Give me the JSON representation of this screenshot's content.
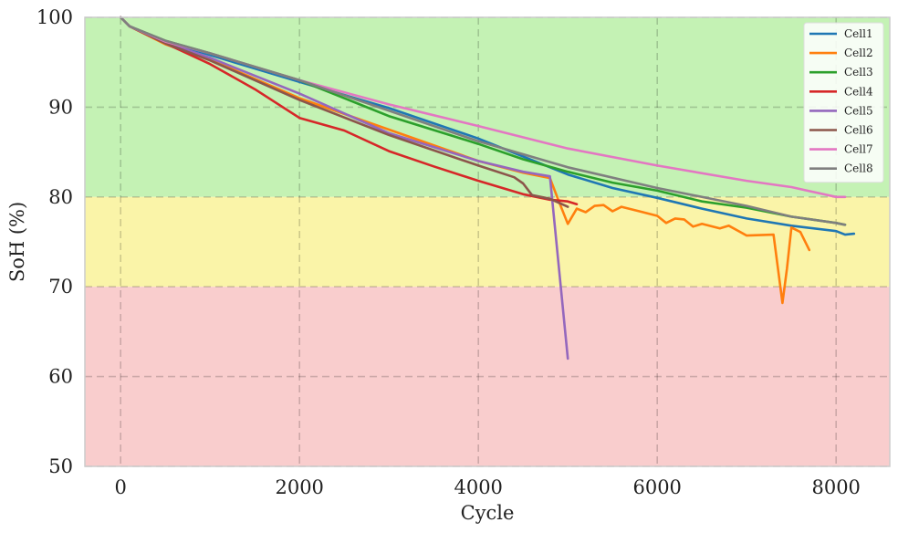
{
  "chart_data": {
    "type": "line",
    "title": "",
    "xlabel": "Cycle",
    "ylabel": "SoH (%)",
    "xlim": [
      -400,
      8600
    ],
    "ylim": [
      50,
      100
    ],
    "xticks": [
      0,
      2000,
      4000,
      6000,
      8000
    ],
    "yticks": [
      50,
      60,
      70,
      80,
      90,
      100
    ],
    "grid": true,
    "legend_position": "top-right",
    "bands": [
      {
        "from": 80,
        "to": 100,
        "color": "#c4f2b4"
      },
      {
        "from": 70,
        "to": 80,
        "color": "#faf4a8"
      },
      {
        "from": 50,
        "to": 70,
        "color": "#f9cdcd"
      }
    ],
    "series": [
      {
        "name": "Cell1",
        "color": "#1f77b4",
        "points": [
          [
            0,
            100
          ],
          [
            100,
            99
          ],
          [
            500,
            97.3
          ],
          [
            1000,
            95.8
          ],
          [
            2000,
            92.8
          ],
          [
            3000,
            89.9
          ],
          [
            4000,
            86.5
          ],
          [
            4500,
            84.5
          ],
          [
            4800,
            83.3
          ],
          [
            5000,
            82.5
          ],
          [
            5500,
            81
          ],
          [
            6000,
            79.9
          ],
          [
            6500,
            78.7
          ],
          [
            7000,
            77.6
          ],
          [
            7500,
            76.8
          ],
          [
            8000,
            76.2
          ],
          [
            8100,
            75.8
          ],
          [
            8200,
            75.9
          ]
        ]
      },
      {
        "name": "Cell2",
        "color": "#ff7f0e",
        "points": [
          [
            0,
            100
          ],
          [
            100,
            99
          ],
          [
            500,
            97
          ],
          [
            1000,
            95.3
          ],
          [
            2000,
            91
          ],
          [
            3000,
            87.5
          ],
          [
            4000,
            84
          ],
          [
            4500,
            82.7
          ],
          [
            4800,
            82.1
          ],
          [
            4900,
            79.5
          ],
          [
            5000,
            77
          ],
          [
            5100,
            78.7
          ],
          [
            5200,
            78.3
          ],
          [
            5300,
            79
          ],
          [
            5400,
            79.1
          ],
          [
            5500,
            78.4
          ],
          [
            5600,
            78.9
          ],
          [
            5800,
            78.4
          ],
          [
            6000,
            77.9
          ],
          [
            6100,
            77.1
          ],
          [
            6200,
            77.6
          ],
          [
            6300,
            77.5
          ],
          [
            6400,
            76.7
          ],
          [
            6500,
            77
          ],
          [
            6700,
            76.5
          ],
          [
            6800,
            76.8
          ],
          [
            7000,
            75.7
          ],
          [
            7300,
            75.8
          ],
          [
            7400,
            68.2
          ],
          [
            7450,
            72
          ],
          [
            7500,
            76.6
          ],
          [
            7600,
            76.1
          ],
          [
            7700,
            74.1
          ]
        ]
      },
      {
        "name": "Cell3",
        "color": "#2ca02c",
        "points": [
          [
            0,
            100
          ],
          [
            100,
            99
          ],
          [
            500,
            97.4
          ],
          [
            1000,
            96
          ],
          [
            2000,
            93
          ],
          [
            3000,
            89
          ],
          [
            4000,
            85.9
          ],
          [
            4500,
            84.2
          ],
          [
            5000,
            82.8
          ],
          [
            5500,
            81.6
          ],
          [
            6000,
            80.7
          ],
          [
            6500,
            79.5
          ],
          [
            7000,
            78.8
          ],
          [
            7500,
            77.8
          ],
          [
            8000,
            77.1
          ],
          [
            8100,
            76.9
          ]
        ]
      },
      {
        "name": "Cell4",
        "color": "#d62728",
        "points": [
          [
            0,
            100
          ],
          [
            100,
            99
          ],
          [
            500,
            97.1
          ],
          [
            1000,
            94.8
          ],
          [
            1500,
            92
          ],
          [
            2000,
            88.8
          ],
          [
            2500,
            87.4
          ],
          [
            3000,
            85.1
          ],
          [
            3500,
            83.4
          ],
          [
            4000,
            81.8
          ],
          [
            4500,
            80.3
          ],
          [
            4800,
            79.7
          ],
          [
            5000,
            79.5
          ],
          [
            5100,
            79.2
          ]
        ]
      },
      {
        "name": "Cell5",
        "color": "#9467bd",
        "points": [
          [
            0,
            100
          ],
          [
            100,
            99
          ],
          [
            500,
            97.2
          ],
          [
            1000,
            95.5
          ],
          [
            2000,
            91.5
          ],
          [
            3000,
            87.1
          ],
          [
            4000,
            84
          ],
          [
            4500,
            82.8
          ],
          [
            4800,
            82.3
          ],
          [
            5000,
            62
          ]
        ]
      },
      {
        "name": "Cell6",
        "color": "#8c564b",
        "points": [
          [
            0,
            100
          ],
          [
            100,
            99
          ],
          [
            500,
            97.1
          ],
          [
            1000,
            95.2
          ],
          [
            2000,
            90.8
          ],
          [
            3000,
            86.9
          ],
          [
            4000,
            83.5
          ],
          [
            4400,
            82.2
          ],
          [
            4500,
            81.5
          ],
          [
            4600,
            80.2
          ],
          [
            4800,
            79.8
          ],
          [
            5000,
            78.9
          ]
        ]
      },
      {
        "name": "Cell7",
        "color": "#e377c2",
        "points": [
          [
            0,
            100
          ],
          [
            100,
            99
          ],
          [
            500,
            97.3
          ],
          [
            1000,
            96
          ],
          [
            2000,
            93
          ],
          [
            3000,
            90.3
          ],
          [
            4000,
            87.9
          ],
          [
            5000,
            85.4
          ],
          [
            6000,
            83.5
          ],
          [
            7000,
            81.8
          ],
          [
            7500,
            81.1
          ],
          [
            8000,
            80
          ],
          [
            8100,
            80
          ]
        ]
      },
      {
        "name": "Cell8",
        "color": "#7f7f7f",
        "points": [
          [
            0,
            100
          ],
          [
            100,
            99
          ],
          [
            500,
            97.4
          ],
          [
            1000,
            96
          ],
          [
            2000,
            93
          ],
          [
            3000,
            89.6
          ],
          [
            4000,
            86.2
          ],
          [
            5000,
            83.3
          ],
          [
            6000,
            81
          ],
          [
            7000,
            79
          ],
          [
            7500,
            77.8
          ],
          [
            8000,
            77.1
          ],
          [
            8100,
            76.9
          ]
        ]
      }
    ]
  }
}
